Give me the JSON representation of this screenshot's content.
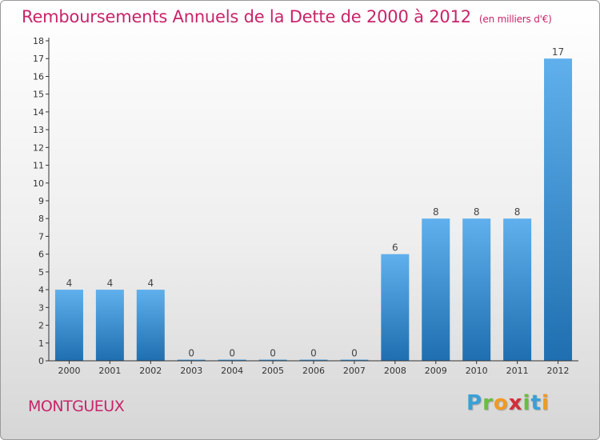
{
  "title": "Remboursements Annuels de la Dette de 2000 à 2012",
  "unit": "(en milliers d'€)",
  "commune": "MONTGUEUX",
  "brand": {
    "letters": [
      {
        "char": "P",
        "color": "#3aa0d8"
      },
      {
        "char": "r",
        "color": "#6cbd3f"
      },
      {
        "char": "o",
        "color": "#f29a1f"
      },
      {
        "char": "x",
        "color": "#d42d3a"
      },
      {
        "char": "i",
        "color": "#6cbd3f"
      },
      {
        "char": "t",
        "color": "#3aa0d8"
      },
      {
        "char": "i",
        "color": "#f29a1f"
      }
    ]
  },
  "colors": {
    "title": "#c8246a",
    "bar_top": "#5fb0ec",
    "bar_bottom": "#1f6fb0"
  },
  "chart_data": {
    "type": "bar",
    "categories": [
      "2000",
      "2001",
      "2002",
      "2003",
      "2004",
      "2005",
      "2006",
      "2007",
      "2008",
      "2009",
      "2010",
      "2011",
      "2012"
    ],
    "values": [
      4,
      4,
      4,
      0,
      0,
      0,
      0,
      0,
      6,
      8,
      8,
      8,
      17
    ],
    "ylim": [
      0,
      18
    ],
    "yticks": [
      0,
      1,
      2,
      3,
      4,
      5,
      6,
      7,
      8,
      9,
      10,
      11,
      12,
      13,
      14,
      15,
      16,
      17,
      18
    ],
    "grid": false,
    "xlabel": "",
    "ylabel": ""
  }
}
